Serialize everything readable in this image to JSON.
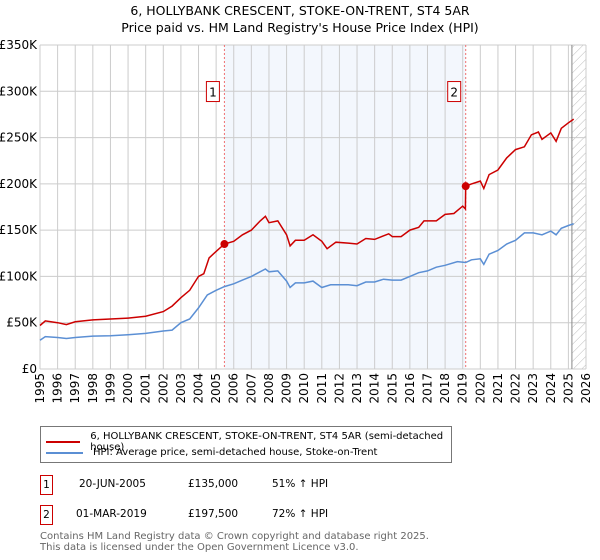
{
  "title": "6, HOLLYBANK CRESCENT, STOKE-ON-TRENT, ST4 5AR",
  "subtitle": "Price paid vs. HM Land Registry's House Price Index (HPI)",
  "chart_data": {
    "type": "line",
    "title": "6, HOLLYBANK CRESCENT, STOKE-ON-TRENT, ST4 5AR",
    "subtitle": "Price paid vs. HM Land Registry's House Price Index (HPI)",
    "xlim": [
      1995,
      2026
    ],
    "ylim": [
      0,
      350000
    ],
    "x_ticks": [
      "1995",
      "1996",
      "1997",
      "1998",
      "1999",
      "2000",
      "2001",
      "2002",
      "2003",
      "2004",
      "2005",
      "2006",
      "2007",
      "2008",
      "2009",
      "2010",
      "2011",
      "2012",
      "2013",
      "2014",
      "2015",
      "2016",
      "2017",
      "2018",
      "2019",
      "2020",
      "2021",
      "2022",
      "2023",
      "2024",
      "2025",
      "2026"
    ],
    "y_ticks": [
      {
        "v": 0,
        "label": "£0"
      },
      {
        "v": 50000,
        "label": "£50K"
      },
      {
        "v": 100000,
        "label": "£100K"
      },
      {
        "v": 150000,
        "label": "£150K"
      },
      {
        "v": 200000,
        "label": "£200K"
      },
      {
        "v": 250000,
        "label": "£250K"
      },
      {
        "v": 300000,
        "label": "£300K"
      },
      {
        "v": 350000,
        "label": "£350K"
      }
    ],
    "grid": true,
    "shaded_range": [
      2005.47,
      2019.17
    ],
    "forecast_from": 2025.2,
    "series": [
      {
        "name": "6, HOLLYBANK CRESCENT, STOKE-ON-TRENT, ST4 5AR (semi-detached house)",
        "color": "#cc0000",
        "x": [
          1995,
          1995.3,
          1996,
          1996.5,
          1997,
          1998,
          1999,
          2000,
          2001,
          2002,
          2002.5,
          2003,
          2003.5,
          2004,
          2004.3,
          2004.6,
          2005,
          2005.47,
          2006,
          2006.5,
          2007,
          2007.5,
          2007.8,
          2008,
          2008.5,
          2009,
          2009.2,
          2009.5,
          2010,
          2010.5,
          2011,
          2011.3,
          2011.8,
          2012.5,
          2013,
          2013.5,
          2014,
          2014.8,
          2015,
          2015.5,
          2016,
          2016.5,
          2016.8,
          2017.5,
          2018,
          2018.5,
          2019,
          2019.15,
          2019.17,
          2019.5,
          2020,
          2020.2,
          2020.5,
          2021,
          2021.5,
          2022,
          2022.5,
          2022.9,
          2023.3,
          2023.5,
          2024,
          2024.3,
          2024.6,
          2025,
          2025.3
        ],
        "y": [
          47,
          52,
          50,
          48,
          51,
          53,
          54,
          55,
          57,
          62,
          68,
          77,
          85,
          100,
          103,
          120,
          127,
          135,
          138,
          145,
          150,
          160,
          165,
          158,
          160,
          145,
          133,
          139,
          139,
          145,
          138,
          130,
          137,
          136,
          135,
          141,
          140,
          146,
          143,
          143,
          150,
          153,
          160,
          160,
          167,
          168,
          176,
          173,
          197.5,
          200,
          203,
          195,
          210,
          215,
          228,
          237,
          240,
          253,
          256,
          248,
          255,
          246,
          260,
          266,
          270
        ]
      },
      {
        "name": "HPI: Average price, semi-detached house, Stoke-on-Trent",
        "color": "#5b8fd4",
        "x": [
          1995,
          1995.3,
          1996,
          1996.5,
          1997,
          1998,
          1999,
          2000,
          2001,
          2002,
          2002.5,
          2003,
          2003.5,
          2004,
          2004.5,
          2005,
          2005.47,
          2006,
          2006.5,
          2007,
          2007.8,
          2008,
          2008.5,
          2009,
          2009.2,
          2009.5,
          2010,
          2010.5,
          2011,
          2011.5,
          2012.5,
          2013,
          2013.5,
          2014,
          2014.5,
          2015,
          2015.5,
          2016,
          2016.5,
          2017,
          2017.5,
          2018,
          2018.7,
          2019.17,
          2019.5,
          2020,
          2020.2,
          2020.5,
          2021,
          2021.5,
          2022,
          2022.5,
          2023,
          2023.5,
          2024,
          2024.3,
          2024.6,
          2025,
          2025.3
        ],
        "y": [
          31,
          35,
          34,
          33,
          34,
          35.5,
          36,
          37,
          38.5,
          41,
          42,
          50,
          54,
          66,
          80,
          85,
          89,
          92,
          96,
          100,
          108,
          105,
          106,
          95,
          88,
          93,
          93,
          95,
          88,
          91,
          91,
          90,
          94,
          94,
          97,
          96,
          96,
          100,
          104,
          106,
          110,
          112,
          116,
          115,
          118,
          119,
          113,
          124,
          128,
          135,
          139,
          147,
          147,
          145,
          149,
          145,
          152,
          155,
          157
        ]
      }
    ],
    "y_unit": "thousands GBP",
    "annotations": [
      {
        "label": "1",
        "x": 2005.47,
        "y": 135
      },
      {
        "label": "2",
        "x": 2019.17,
        "y": 197.5
      }
    ]
  },
  "legend": {
    "red": "6, HOLLYBANK CRESCENT, STOKE-ON-TRENT, ST4 5AR (semi-detached house)",
    "blue": "HPI: Average price, semi-detached house, Stoke-on-Trent"
  },
  "transactions": [
    {
      "num": "1",
      "date": "20-JUN-2005",
      "price": "£135,000",
      "hpi": "51% ↑ HPI"
    },
    {
      "num": "2",
      "date": "01-MAR-2019",
      "price": "£197,500",
      "hpi": "72% ↑ HPI"
    }
  ],
  "footer": {
    "line1": "Contains HM Land Registry data © Crown copyright and database right 2025.",
    "line2": "This data is licensed under the Open Government Licence v3.0."
  }
}
